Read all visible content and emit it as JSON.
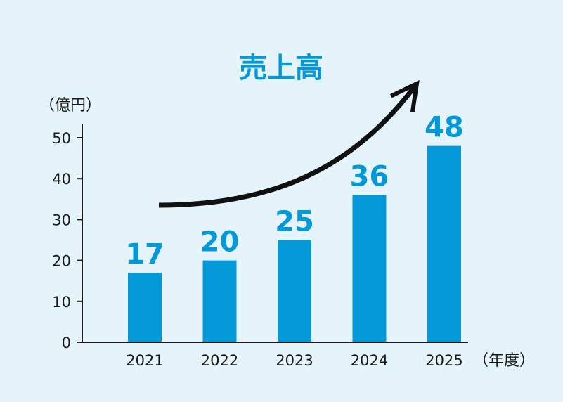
{
  "chart_data": {
    "type": "bar",
    "title": "売上高",
    "ylabel": "（億円）",
    "xlabel": "（年度）",
    "categories": [
      "2021",
      "2022",
      "2023",
      "2024",
      "2025"
    ],
    "values": [
      17,
      20,
      25,
      36,
      48
    ],
    "value_labels": [
      "17",
      "20",
      "25",
      "36",
      "48"
    ],
    "yticks": [
      0,
      10,
      20,
      30,
      40,
      50
    ],
    "ylim": [
      0,
      50
    ],
    "grid": false,
    "legend": "none",
    "annotation": "upward-trend-arrow",
    "colors": {
      "bar": "#0399d9",
      "title": "#0399d9",
      "value_label": "#0399d9",
      "axis": "#1a1a1a",
      "arrow": "#111111",
      "background": "#e5f3fa"
    }
  }
}
